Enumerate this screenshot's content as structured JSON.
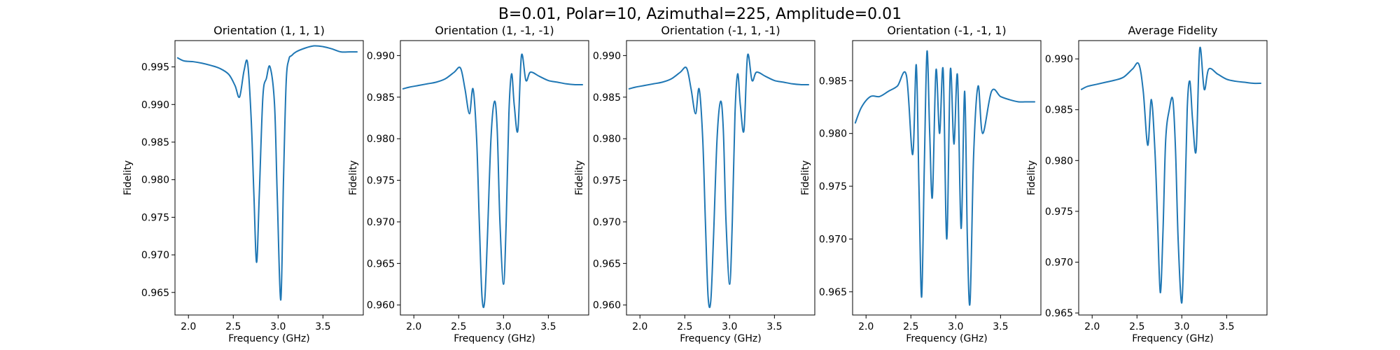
{
  "figure": {
    "suptitle": "B=0.01, Polar=10, Azimuthal=225, Amplitude=0.01"
  },
  "chart_data": [
    {
      "type": "line",
      "title": "Orientation (1, 1, 1)",
      "xlabel": "Frequency (GHz)",
      "ylabel": "Fidelity",
      "xlim": [
        1.85,
        3.95
      ],
      "ylim": [
        0.962,
        0.9985
      ],
      "xticks": [
        2.0,
        2.5,
        3.0,
        3.5
      ],
      "yticks": [
        0.965,
        0.97,
        0.975,
        0.98,
        0.985,
        0.99,
        0.995
      ],
      "color": "#1f77b4",
      "series": [
        {
          "x": [
            1.88,
            1.95,
            2.05,
            2.15,
            2.25,
            2.35,
            2.45,
            2.52,
            2.57,
            2.62,
            2.66,
            2.7,
            2.73,
            2.76,
            2.79,
            2.83,
            2.87,
            2.91,
            2.96,
            2.99,
            3.03,
            3.06,
            3.09,
            3.12,
            3.15,
            3.2,
            3.3,
            3.4,
            3.5,
            3.6,
            3.7,
            3.8,
            3.88
          ],
          "y": [
            0.9962,
            0.9958,
            0.9957,
            0.9955,
            0.9952,
            0.9948,
            0.994,
            0.9925,
            0.991,
            0.9945,
            0.9955,
            0.988,
            0.978,
            0.969,
            0.978,
            0.991,
            0.9935,
            0.995,
            0.99,
            0.978,
            0.964,
            0.98,
            0.993,
            0.996,
            0.9965,
            0.997,
            0.9975,
            0.9978,
            0.9977,
            0.9974,
            0.997,
            0.997,
            0.997
          ]
        }
      ]
    },
    {
      "type": "line",
      "title": "Orientation (1, -1, -1)",
      "xlabel": "Frequency (GHz)",
      "ylabel": "Fidelity",
      "xlim": [
        1.85,
        3.95
      ],
      "ylim": [
        0.9588,
        0.9918
      ],
      "xticks": [
        2.0,
        2.5,
        3.0,
        3.5
      ],
      "yticks": [
        0.96,
        0.965,
        0.97,
        0.975,
        0.98,
        0.985,
        0.99
      ],
      "color": "#1f77b4",
      "series": [
        {
          "x": [
            1.88,
            1.95,
            2.05,
            2.15,
            2.25,
            2.35,
            2.45,
            2.52,
            2.57,
            2.62,
            2.66,
            2.7,
            2.73,
            2.76,
            2.79,
            2.82,
            2.86,
            2.9,
            2.93,
            2.96,
            3.0,
            3.03,
            3.06,
            3.09,
            3.12,
            3.16,
            3.2,
            3.25,
            3.3,
            3.4,
            3.5,
            3.6,
            3.7,
            3.8,
            3.88
          ],
          "y": [
            0.986,
            0.9862,
            0.9864,
            0.9866,
            0.9868,
            0.9872,
            0.988,
            0.9885,
            0.986,
            0.983,
            0.986,
            0.98,
            0.97,
            0.961,
            0.9605,
            0.968,
            0.98,
            0.9845,
            0.981,
            0.97,
            0.9625,
            0.97,
            0.983,
            0.9878,
            0.984,
            0.981,
            0.99,
            0.987,
            0.988,
            0.9875,
            0.987,
            0.9868,
            0.9866,
            0.9865,
            0.9865
          ]
        }
      ]
    },
    {
      "type": "line",
      "title": "Orientation (-1, 1, -1)",
      "xlabel": "Frequency (GHz)",
      "ylabel": "Fidelity",
      "xlim": [
        1.85,
        3.95
      ],
      "ylim": [
        0.9588,
        0.9918
      ],
      "xticks": [
        2.0,
        2.5,
        3.0,
        3.5
      ],
      "yticks": [
        0.96,
        0.965,
        0.97,
        0.975,
        0.98,
        0.985,
        0.99
      ],
      "color": "#1f77b4",
      "series": [
        {
          "x": [
            1.88,
            1.95,
            2.05,
            2.15,
            2.25,
            2.35,
            2.45,
            2.52,
            2.57,
            2.62,
            2.66,
            2.7,
            2.73,
            2.76,
            2.79,
            2.82,
            2.86,
            2.9,
            2.93,
            2.96,
            3.0,
            3.03,
            3.06,
            3.09,
            3.12,
            3.16,
            3.2,
            3.25,
            3.3,
            3.4,
            3.5,
            3.6,
            3.7,
            3.8,
            3.88
          ],
          "y": [
            0.986,
            0.9862,
            0.9864,
            0.9866,
            0.9868,
            0.9872,
            0.988,
            0.9885,
            0.986,
            0.983,
            0.986,
            0.98,
            0.97,
            0.961,
            0.9605,
            0.968,
            0.98,
            0.9845,
            0.981,
            0.97,
            0.9625,
            0.97,
            0.983,
            0.9878,
            0.984,
            0.981,
            0.99,
            0.987,
            0.988,
            0.9875,
            0.987,
            0.9868,
            0.9866,
            0.9865,
            0.9865
          ]
        }
      ]
    },
    {
      "type": "line",
      "title": "Orientation (-1, -1, 1)",
      "xlabel": "Frequency (GHz)",
      "ylabel": "Fidelity",
      "xlim": [
        1.85,
        3.95
      ],
      "ylim": [
        0.9628,
        0.9888
      ],
      "xticks": [
        2.0,
        2.5,
        3.0,
        3.5
      ],
      "yticks": [
        0.965,
        0.97,
        0.975,
        0.98,
        0.985
      ],
      "color": "#1f77b4",
      "series": [
        {
          "x": [
            1.88,
            1.95,
            2.05,
            2.15,
            2.25,
            2.35,
            2.45,
            2.52,
            2.56,
            2.59,
            2.62,
            2.65,
            2.68,
            2.71,
            2.74,
            2.78,
            2.82,
            2.86,
            2.9,
            2.94,
            2.98,
            3.02,
            3.06,
            3.1,
            3.13,
            3.16,
            3.2,
            3.25,
            3.3,
            3.4,
            3.5,
            3.6,
            3.7,
            3.8,
            3.88
          ],
          "y": [
            0.981,
            0.9825,
            0.9835,
            0.9835,
            0.984,
            0.9845,
            0.9855,
            0.978,
            0.9865,
            0.975,
            0.9645,
            0.977,
            0.9878,
            0.98,
            0.974,
            0.986,
            0.98,
            0.986,
            0.97,
            0.986,
            0.979,
            0.9855,
            0.971,
            0.984,
            0.97,
            0.964,
            0.978,
            0.9845,
            0.98,
            0.984,
            0.9835,
            0.9832,
            0.983,
            0.983,
            0.983
          ]
        }
      ]
    },
    {
      "type": "line",
      "title": "Average Fidelity",
      "xlabel": "Frequency (GHz)",
      "ylabel": "Fidelity",
      "xlim": [
        1.85,
        3.95
      ],
      "ylim": [
        0.9648,
        0.9918
      ],
      "xticks": [
        2.0,
        2.5,
        3.0,
        3.5
      ],
      "yticks": [
        0.965,
        0.97,
        0.975,
        0.98,
        0.985,
        0.99
      ],
      "color": "#1f77b4",
      "series": [
        {
          "x": [
            1.88,
            1.95,
            2.05,
            2.15,
            2.25,
            2.35,
            2.45,
            2.52,
            2.57,
            2.62,
            2.66,
            2.7,
            2.73,
            2.76,
            2.79,
            2.82,
            2.86,
            2.9,
            2.93,
            2.96,
            3.0,
            3.03,
            3.06,
            3.09,
            3.12,
            3.16,
            3.2,
            3.25,
            3.3,
            3.4,
            3.5,
            3.6,
            3.7,
            3.8,
            3.88
          ],
          "y": [
            0.987,
            0.9873,
            0.9875,
            0.9877,
            0.9879,
            0.9882,
            0.989,
            0.9895,
            0.9868,
            0.9815,
            0.986,
            0.981,
            0.974,
            0.967,
            0.973,
            0.982,
            0.985,
            0.986,
            0.981,
            0.972,
            0.966,
            0.974,
            0.985,
            0.9878,
            0.984,
            0.981,
            0.991,
            0.987,
            0.989,
            0.9885,
            0.988,
            0.9878,
            0.9877,
            0.9876,
            0.9876
          ]
        }
      ]
    }
  ]
}
